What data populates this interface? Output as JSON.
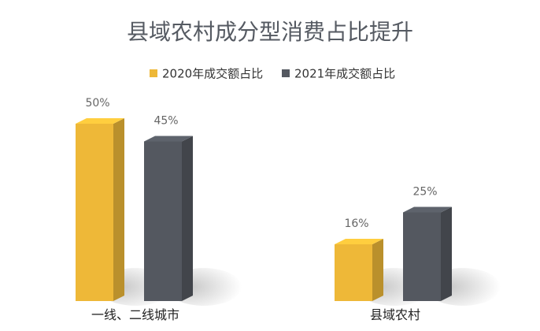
{
  "colors": {
    "series_2020": "#eeb838",
    "series_2021": "#545860"
  },
  "chart_data": {
    "type": "bar",
    "title": "县域农村成分型消费占比提升",
    "categories": [
      "一线、二线城市",
      "县域农村"
    ],
    "series": [
      {
        "name": "2020年成交额占比",
        "values": [
          50,
          16
        ],
        "labels": [
          "50%",
          "16%"
        ]
      },
      {
        "name": "2021年成交额占比",
        "values": [
          45,
          25
        ],
        "labels": [
          "45%",
          "25%"
        ]
      }
    ],
    "ylim": [
      0,
      50
    ],
    "grid": false,
    "legend": "top-center"
  }
}
